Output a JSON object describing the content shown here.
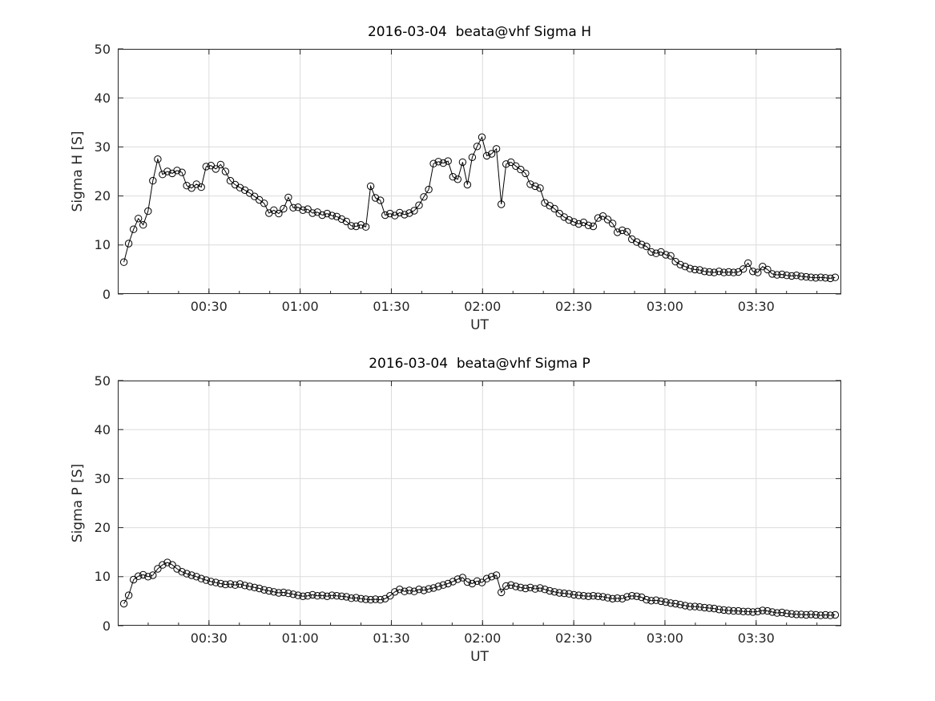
{
  "figure": {
    "background": "#ffffff"
  },
  "chart_data": [
    {
      "id": "sigma-h",
      "type": "line",
      "title": "2016-03-04  beata@vhf Sigma H",
      "xlabel": "UT",
      "ylabel": "Sigma H [S]",
      "ylim": [
        0,
        50
      ],
      "yticks": [
        0,
        10,
        20,
        30,
        40,
        50
      ],
      "xlim_minutes": [
        0,
        238
      ],
      "xticks": [
        {
          "m": 30,
          "label": "00:30"
        },
        {
          "m": 60,
          "label": "01:00"
        },
        {
          "m": 90,
          "label": "01:30"
        },
        {
          "m": 120,
          "label": "02:00"
        },
        {
          "m": 150,
          "label": "02:30"
        },
        {
          "m": 180,
          "label": "03:00"
        },
        {
          "m": 210,
          "label": "03:30"
        }
      ],
      "x_minor_tick_minutes": 10,
      "x_start_min": 2,
      "x_end_min": 236,
      "marker": "circle",
      "grid": true,
      "legend": "none",
      "line_color": "#000000",
      "axis_color": "#262626",
      "grid_color": "#dcdcdc",
      "values": [
        6.5,
        10.3,
        13.2,
        15.4,
        14.1,
        16.9,
        23.1,
        27.5,
        24.4,
        25.0,
        24.6,
        25.2,
        24.8,
        22.1,
        21.6,
        22.4,
        21.8,
        26.0,
        26.2,
        25.5,
        26.4,
        25.0,
        23.1,
        22.3,
        21.7,
        21.2,
        20.6,
        19.9,
        19.2,
        18.5,
        16.5,
        17.1,
        16.4,
        17.4,
        19.7,
        17.6,
        17.7,
        17.1,
        17.3,
        16.5,
        16.7,
        16.1,
        16.4,
        16.0,
        15.8,
        15.3,
        14.8,
        13.9,
        13.8,
        14.1,
        13.7,
        22.0,
        19.6,
        19.1,
        16.1,
        16.4,
        16.0,
        16.6,
        16.2,
        16.5,
        17.0,
        18.1,
        19.8,
        21.3,
        26.6,
        27.0,
        26.7,
        27.1,
        23.9,
        23.4,
        26.9,
        22.3,
        27.9,
        30.1,
        32.0,
        28.2,
        28.6,
        29.6,
        18.3,
        26.5,
        26.9,
        26.1,
        25.4,
        24.6,
        22.4,
        22.0,
        21.6,
        18.6,
        18.0,
        17.4,
        16.4,
        15.7,
        15.1,
        14.7,
        14.3,
        14.6,
        14.0,
        13.8,
        15.5,
        15.9,
        15.2,
        14.4,
        12.6,
        13.0,
        12.7,
        11.2,
        10.6,
        10.1,
        9.7,
        8.6,
        8.3,
        8.6,
        8.0,
        7.8,
        6.6,
        6.0,
        5.6,
        5.2,
        5.0,
        4.9,
        4.6,
        4.5,
        4.4,
        4.6,
        4.4,
        4.5,
        4.4,
        4.5,
        5.1,
        6.3,
        4.6,
        4.4,
        5.6,
        5.0,
        4.1,
        3.9,
        4.0,
        3.8,
        3.7,
        3.8,
        3.6,
        3.5,
        3.4,
        3.3,
        3.4,
        3.3,
        3.2,
        3.4
      ]
    },
    {
      "id": "sigma-p",
      "type": "line",
      "title": "2016-03-04  beata@vhf Sigma P",
      "xlabel": "UT",
      "ylabel": "Sigma P [S]",
      "ylim": [
        0,
        50
      ],
      "yticks": [
        0,
        10,
        20,
        30,
        40,
        50
      ],
      "xlim_minutes": [
        0,
        238
      ],
      "xticks": [
        {
          "m": 30,
          "label": "00:30"
        },
        {
          "m": 60,
          "label": "01:00"
        },
        {
          "m": 90,
          "label": "01:30"
        },
        {
          "m": 120,
          "label": "02:00"
        },
        {
          "m": 150,
          "label": "02:30"
        },
        {
          "m": 180,
          "label": "03:00"
        },
        {
          "m": 210,
          "label": "03:30"
        }
      ],
      "x_minor_tick_minutes": 10,
      "x_start_min": 2,
      "x_end_min": 236,
      "marker": "circle",
      "grid": true,
      "legend": "none",
      "line_color": "#000000",
      "axis_color": "#262626",
      "grid_color": "#dcdcdc",
      "values": [
        4.5,
        6.2,
        9.4,
        10.1,
        10.4,
        10.0,
        10.3,
        11.6,
        12.4,
        12.9,
        12.4,
        11.6,
        11.0,
        10.6,
        10.3,
        10.0,
        9.6,
        9.3,
        9.0,
        8.8,
        8.6,
        8.4,
        8.5,
        8.3,
        8.5,
        8.2,
        8.0,
        7.8,
        7.6,
        7.3,
        7.1,
        6.9,
        6.7,
        6.8,
        6.6,
        6.4,
        6.2,
        6.0,
        6.1,
        6.3,
        6.1,
        6.2,
        6.0,
        6.2,
        6.1,
        6.0,
        5.9,
        5.6,
        5.7,
        5.5,
        5.4,
        5.3,
        5.4,
        5.3,
        5.5,
        6.1,
        6.9,
        7.4,
        7.0,
        7.2,
        7.0,
        7.4,
        7.2,
        7.5,
        7.7,
        8.0,
        8.3,
        8.6,
        9.0,
        9.5,
        9.8,
        8.9,
        8.6,
        9.1,
        8.8,
        9.6,
        10.0,
        10.3,
        6.8,
        8.1,
        8.3,
        8.0,
        7.8,
        7.6,
        7.8,
        7.5,
        7.7,
        7.4,
        7.1,
        6.9,
        6.7,
        6.6,
        6.5,
        6.3,
        6.2,
        6.1,
        6.0,
        6.1,
        6.0,
        5.9,
        5.7,
        5.5,
        5.6,
        5.5,
        5.9,
        6.1,
        6.0,
        5.8,
        5.3,
        5.1,
        5.2,
        5.0,
        4.8,
        4.6,
        4.5,
        4.3,
        4.1,
        3.9,
        3.9,
        3.8,
        3.7,
        3.6,
        3.5,
        3.3,
        3.2,
        3.1,
        3.0,
        3.0,
        2.9,
        2.9,
        2.8,
        2.9,
        3.1,
        3.0,
        2.8,
        2.6,
        2.7,
        2.5,
        2.4,
        2.3,
        2.3,
        2.2,
        2.3,
        2.2,
        2.1,
        2.2,
        2.1,
        2.2
      ]
    }
  ]
}
